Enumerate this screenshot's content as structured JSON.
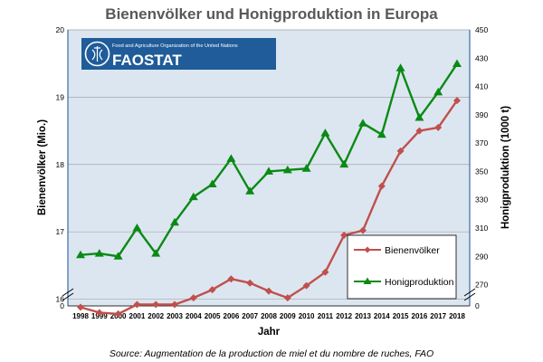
{
  "chart_data": {
    "type": "line",
    "title": "Bienenvölker und Honigproduktion in Europa",
    "xlabel": "Jahr",
    "ylabel_left": "Bienenvölker (Mio.)",
    "ylabel_right": "Honigproduktion (1000 t)",
    "categories": [
      "1998",
      "1999",
      "2000",
      "2001",
      "2002",
      "2003",
      "2004",
      "2005",
      "2006",
      "2007",
      "2008",
      "2009",
      "2010",
      "2011",
      "2012",
      "2013",
      "2014",
      "2015",
      "2016",
      "2017",
      "2018"
    ],
    "left_axis": {
      "ticks": [
        "0",
        "16",
        "17",
        "18",
        "19",
        "20"
      ],
      "range": [
        15.9,
        20
      ],
      "break": true
    },
    "right_axis": {
      "ticks": [
        "0",
        "270",
        "290",
        "310",
        "330",
        "350",
        "370",
        "390",
        "410",
        "430",
        "450"
      ],
      "range": [
        255,
        450
      ],
      "break": true
    },
    "series": [
      {
        "name": "Bienenvölker",
        "axis": "left",
        "color": "#c0504d",
        "marker": "diamond",
        "values": [
          15.88,
          15.8,
          15.78,
          15.92,
          15.92,
          15.92,
          16.02,
          16.14,
          16.3,
          16.24,
          16.12,
          16.02,
          16.2,
          16.4,
          16.95,
          17.02,
          17.68,
          18.2,
          18.5,
          18.55,
          18.95
        ]
      },
      {
        "name": "Honigproduktion",
        "axis": "right",
        "color": "#0a8a14",
        "marker": "triangle",
        "values": [
          291,
          292,
          290,
          310,
          292,
          314,
          332,
          341,
          359,
          336,
          350,
          351,
          352,
          377,
          355,
          384,
          376,
          423,
          388,
          406,
          426
        ]
      }
    ],
    "grid": true,
    "legend_position": "bottom-right",
    "plot_background": "#dce6f1"
  },
  "logo": {
    "org_name": "Food and Agriculture Organization of the United Nations",
    "wordmark": "FAOSTAT",
    "color": "#1f5c99"
  },
  "source_note": "Source: Augmentation de la production de miel et du nombre de ruches, FAO"
}
